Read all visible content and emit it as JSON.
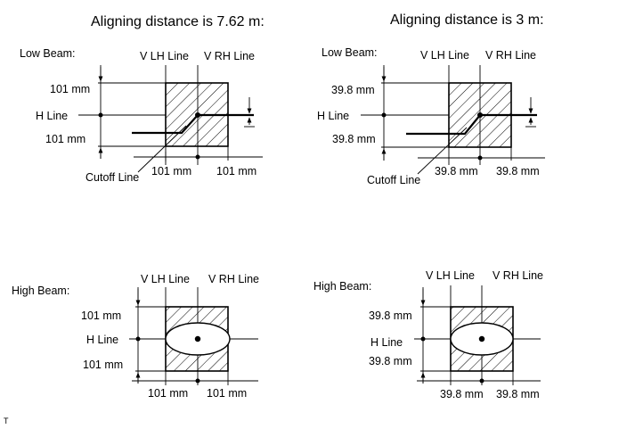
{
  "titles": {
    "left": "Aligning distance is 7.62 m:",
    "right": "Aligning distance is 3 m:"
  },
  "low_left": {
    "beam": "Low Beam:",
    "vlh": "V LH Line",
    "vrh": "V RH Line",
    "top_dist": "101 mm",
    "hline": "H Line",
    "bottom_dist": "101 mm",
    "cutoff": "Cutoff Line",
    "lh_dist": "101 mm",
    "rh_dist": "101 mm"
  },
  "low_right": {
    "beam": "Low Beam:",
    "vlh": "V LH Line",
    "vrh": "V RH Line",
    "top_dist": "39.8 mm",
    "hline": "H Line",
    "bottom_dist": "39.8 mm",
    "cutoff": "Cutoff Line",
    "lh_dist": "39.8 mm",
    "rh_dist": "39.8 mm"
  },
  "high_left": {
    "beam": "High Beam:",
    "vlh": "V LH Line",
    "vrh": "V RH Line",
    "top_dist": "101 mm",
    "hline": "H Line",
    "bottom_dist": "101 mm",
    "lh_dist": "101 mm",
    "rh_dist": "101 mm"
  },
  "high_right": {
    "beam": "High Beam:",
    "vlh": "V LH Line",
    "vrh": "V RH Line",
    "top_dist": "39.8 mm",
    "hline": "H Line",
    "bottom_dist": "39.8 mm",
    "lh_dist": "39.8 mm",
    "rh_dist": "39.8 mm"
  },
  "corner_mark": "T"
}
